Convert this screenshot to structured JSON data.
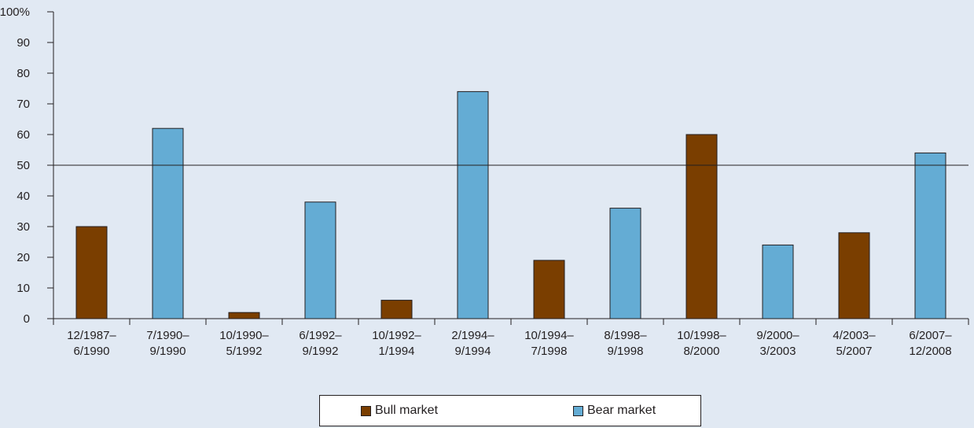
{
  "chart_data": {
    "type": "bar",
    "categories": [
      [
        "12/1987–",
        "6/1990"
      ],
      [
        "7/1990–",
        "9/1990"
      ],
      [
        "10/1990–",
        "5/1992"
      ],
      [
        "6/1992–",
        "9/1992"
      ],
      [
        "10/1992–",
        "1/1994"
      ],
      [
        "2/1994–",
        "9/1994"
      ],
      [
        "10/1994–",
        "7/1998"
      ],
      [
        "8/1998–",
        "9/1998"
      ],
      [
        "10/1998–",
        "8/2000"
      ],
      [
        "9/2000–",
        "3/2003"
      ],
      [
        "4/2003–",
        "5/2007"
      ],
      [
        "6/2007–",
        "12/2008"
      ]
    ],
    "values": [
      30,
      62,
      2,
      38,
      6,
      74,
      19,
      36,
      60,
      24,
      28,
      54
    ],
    "market": [
      "bull",
      "bear",
      "bull",
      "bear",
      "bull",
      "bear",
      "bull",
      "bear",
      "bull",
      "bear",
      "bull",
      "bear"
    ],
    "ylim": [
      0,
      100
    ],
    "yticks": [
      0,
      10,
      20,
      30,
      40,
      50,
      60,
      70,
      80,
      90,
      100
    ],
    "ytick_labels": [
      "0",
      "10",
      "20",
      "30",
      "40",
      "50",
      "60",
      "70",
      "80",
      "90",
      "100%"
    ],
    "reference_line": 50,
    "legend_position": "bottom-center",
    "grid": false
  },
  "legend": {
    "bull_label": "Bull market",
    "bear_label": "Bear market"
  },
  "colors": {
    "background": "#e1e9f3",
    "bull": "#7a3e00",
    "bear": "#64acd4",
    "axis": "#231f20"
  }
}
